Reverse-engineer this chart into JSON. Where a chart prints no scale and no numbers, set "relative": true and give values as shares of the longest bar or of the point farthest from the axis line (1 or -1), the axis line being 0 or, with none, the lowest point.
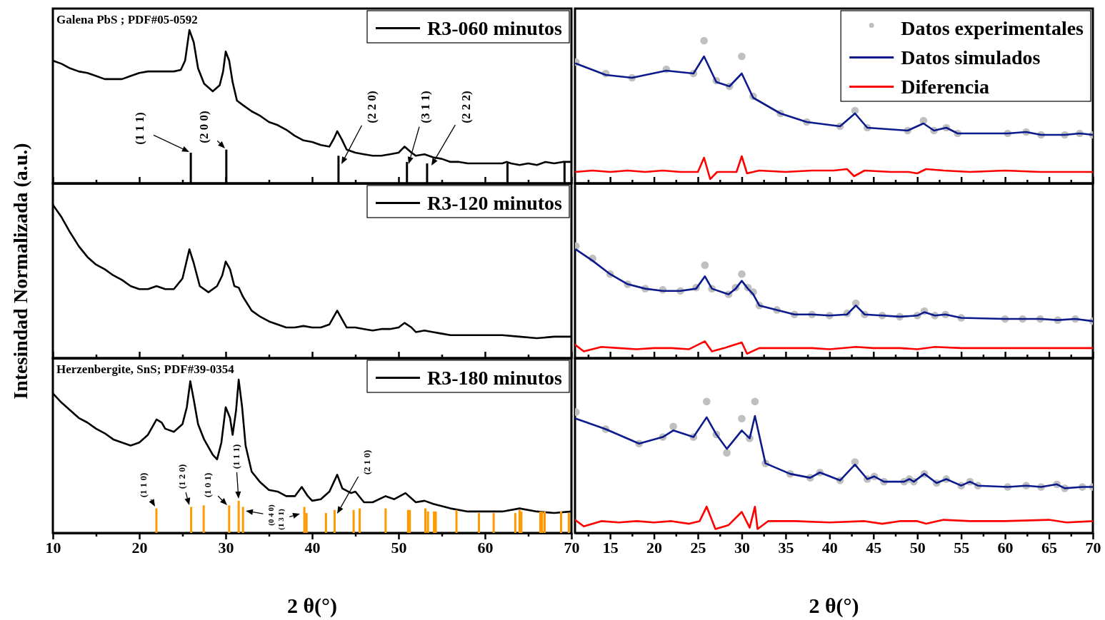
{
  "chart_data": [
    {
      "type": "line",
      "relative": true,
      "xlim": [
        10,
        70
      ],
      "xticks": [
        10,
        {
          "value": 15,
          "label": null
        },
        20,
        {
          "value": 25,
          "label": null
        },
        30,
        {
          "value": 35,
          "label": null
        },
        40,
        {
          "value": 45,
          "label": null
        },
        50,
        {
          "value": 55,
          "label": null
        },
        60,
        {
          "value": 65,
          "label": null
        },
        70
      ],
      "tick_labels": false,
      "legend": "top right",
      "annotations": [
        "Galena PbS ; PDF#05-0592",
        "(1 1 1)",
        "(2 0 0)",
        "(2 2 0)",
        "(3 1 1)",
        "(2 2 2)"
      ],
      "series": [
        {
          "name": "R3-060 minutos",
          "color": "#000000",
          "x": [
            10,
            11,
            12,
            13,
            14,
            15,
            16,
            17,
            18,
            19,
            20,
            21,
            22,
            23,
            24,
            24.8,
            25.3,
            25.8,
            26.3,
            26.8,
            27.5,
            28.5,
            29.3,
            29.7,
            30,
            30.4,
            30.8,
            31.3,
            32,
            33,
            34,
            35,
            36,
            37,
            38,
            39,
            40,
            41,
            42,
            42.5,
            42.9,
            43.4,
            44,
            45,
            46,
            47,
            48,
            49,
            50,
            50.7,
            51.5,
            52,
            53,
            54,
            55,
            56,
            57,
            58,
            59,
            60,
            61,
            62,
            62.5,
            63,
            64,
            65,
            66,
            67,
            68,
            69,
            70
          ],
          "values": [
            0.8,
            0.78,
            0.75,
            0.73,
            0.72,
            0.7,
            0.68,
            0.68,
            0.68,
            0.7,
            0.72,
            0.73,
            0.73,
            0.73,
            0.73,
            0.74,
            0.8,
            1.0,
            0.92,
            0.75,
            0.65,
            0.6,
            0.64,
            0.73,
            0.86,
            0.8,
            0.66,
            0.54,
            0.51,
            0.47,
            0.44,
            0.4,
            0.38,
            0.35,
            0.31,
            0.28,
            0.27,
            0.25,
            0.24,
            0.29,
            0.34,
            0.29,
            0.22,
            0.2,
            0.19,
            0.18,
            0.18,
            0.19,
            0.2,
            0.24,
            0.2,
            0.18,
            0.19,
            0.17,
            0.16,
            0.14,
            0.14,
            0.13,
            0.13,
            0.13,
            0.13,
            0.13,
            0.14,
            0.13,
            0.12,
            0.13,
            0.12,
            0.14,
            0.13,
            0.14,
            0.14
          ]
        },
        {
          "type": "bar",
          "color": "#000000",
          "x": [
            25.96,
            30.07,
            43.05,
            50.97,
            53.3,
            62.6,
            69.2
          ],
          "values": [
            0.2,
            0.22,
            0.18,
            0.14,
            0.13,
            0.13,
            0.14
          ]
        }
      ]
    },
    {
      "type": "line",
      "relative": true,
      "xlim": [
        11,
        70
      ],
      "xticks": [
        {
          "value": 12.5,
          "label": null
        },
        15,
        {
          "value": 17.5,
          "label": null
        },
        20,
        {
          "value": 22.5,
          "label": null
        },
        25,
        {
          "value": 27.5,
          "label": null
        },
        30,
        {
          "value": 32.5,
          "label": null
        },
        35,
        {
          "value": 37.5,
          "label": null
        },
        40,
        {
          "value": 42.5,
          "label": null
        },
        45,
        {
          "value": 47.5,
          "label": null
        },
        50,
        {
          "value": 52.5,
          "label": null
        },
        55,
        {
          "value": 57.5,
          "label": null
        },
        60,
        {
          "value": 62.5,
          "label": null
        },
        65,
        {
          "value": 67.5,
          "label": null
        },
        70
      ],
      "tick_labels": false,
      "legend": "top right",
      "series": [
        {
          "name": "Datos experimentales",
          "type": "scatter",
          "marker": "circle",
          "color": "#c0c0c0",
          "x": [
            11.1,
            14.5,
            17.5,
            21.4,
            24.5,
            25.7,
            27.1,
            28.6,
            30.0,
            31.3,
            34.4,
            37.4,
            41.2,
            42.9,
            44.3,
            48.9,
            50.7,
            51.9,
            53.3,
            54.6,
            60.3,
            62.4,
            64.1,
            66.8,
            68.5,
            70
          ],
          "values": [
            0.85,
            0.77,
            0.74,
            0.8,
            0.77,
            1.0,
            0.72,
            0.68,
            0.89,
            0.61,
            0.49,
            0.43,
            0.4,
            0.51,
            0.39,
            0.37,
            0.44,
            0.37,
            0.39,
            0.35,
            0.35,
            0.36,
            0.34,
            0.34,
            0.35,
            0.34
          ]
        },
        {
          "name": "Datos simulados",
          "color": "#0d1a8c",
          "x": [
            11.1,
            14.5,
            17.5,
            21.4,
            24.5,
            25.7,
            27.1,
            28.6,
            30.0,
            31.3,
            34.4,
            37.4,
            41.2,
            42.9,
            44.3,
            48.9,
            50.7,
            51.9,
            53.3,
            54.6,
            60.3,
            62.4,
            64.1,
            66.8,
            68.5,
            70
          ],
          "values": [
            0.84,
            0.76,
            0.74,
            0.79,
            0.77,
            0.89,
            0.71,
            0.68,
            0.77,
            0.6,
            0.49,
            0.43,
            0.4,
            0.49,
            0.39,
            0.37,
            0.42,
            0.37,
            0.39,
            0.35,
            0.35,
            0.36,
            0.34,
            0.34,
            0.35,
            0.34
          ]
        },
        {
          "name": "Diferencia",
          "color": "#ff0000",
          "x": [
            11,
            13,
            15,
            17,
            19,
            21,
            23,
            25,
            25.7,
            26.4,
            27.2,
            29.4,
            30,
            30.6,
            32,
            35,
            38,
            40.5,
            42,
            42.8,
            44,
            47,
            49,
            50,
            51,
            53,
            56,
            60,
            64,
            68,
            70
          ],
          "values": [
            0.08,
            0.09,
            0.08,
            0.09,
            0.08,
            0.09,
            0.08,
            0.08,
            0.18,
            0.03,
            0.08,
            0.08,
            0.19,
            0.07,
            0.09,
            0.08,
            0.09,
            0.09,
            0.1,
            0.05,
            0.09,
            0.08,
            0.08,
            0.07,
            0.1,
            0.09,
            0.08,
            0.09,
            0.08,
            0.08,
            0.08
          ]
        }
      ]
    },
    {
      "type": "line",
      "relative": true,
      "xlim": [
        10,
        70
      ],
      "xticks": [
        10,
        {
          "value": 15,
          "label": null
        },
        20,
        {
          "value": 25,
          "label": null
        },
        30,
        {
          "value": 35,
          "label": null
        },
        40,
        {
          "value": 45,
          "label": null
        },
        50,
        {
          "value": 55,
          "label": null
        },
        60,
        {
          "value": 65,
          "label": null
        },
        70
      ],
      "tick_labels": false,
      "legend": "top right",
      "ylabel": "Intesindad Normalizada (a.u.)",
      "series": [
        {
          "name": "R3-120 minutos",
          "color": "#000000",
          "x": [
            10,
            11,
            12,
            13,
            14,
            15,
            16,
            17,
            18,
            19,
            20,
            21,
            22,
            23,
            24,
            25,
            25.8,
            26.3,
            27,
            28,
            29,
            29.6,
            30,
            30.5,
            31,
            31.5,
            32,
            33,
            34,
            35,
            36,
            37,
            38,
            39,
            40,
            41,
            42,
            42.9,
            43.5,
            44,
            45,
            46,
            47,
            48,
            49,
            50,
            50.7,
            51.5,
            52,
            53,
            54,
            55,
            56,
            57,
            58,
            59,
            60,
            62,
            64,
            66,
            68,
            70
          ],
          "values": [
            1.0,
            0.92,
            0.82,
            0.73,
            0.66,
            0.61,
            0.58,
            0.54,
            0.51,
            0.47,
            0.45,
            0.45,
            0.47,
            0.45,
            0.45,
            0.52,
            0.71,
            0.62,
            0.47,
            0.43,
            0.47,
            0.54,
            0.63,
            0.58,
            0.47,
            0.46,
            0.4,
            0.31,
            0.27,
            0.24,
            0.22,
            0.2,
            0.2,
            0.21,
            0.2,
            0.2,
            0.22,
            0.31,
            0.25,
            0.2,
            0.2,
            0.19,
            0.18,
            0.19,
            0.19,
            0.2,
            0.23,
            0.2,
            0.17,
            0.18,
            0.17,
            0.16,
            0.15,
            0.15,
            0.15,
            0.15,
            0.15,
            0.15,
            0.14,
            0.13,
            0.14,
            0.14
          ]
        }
      ]
    },
    {
      "type": "line",
      "relative": true,
      "xlim": [
        11,
        70
      ],
      "xticks": [
        {
          "value": 12.5,
          "label": null
        },
        15,
        {
          "value": 17.5,
          "label": null
        },
        20,
        {
          "value": 22.5,
          "label": null
        },
        25,
        {
          "value": 27.5,
          "label": null
        },
        30,
        {
          "value": 32.5,
          "label": null
        },
        35,
        {
          "value": 37.5,
          "label": null
        },
        40,
        {
          "value": 42.5,
          "label": null
        },
        45,
        {
          "value": 47.5,
          "label": null
        },
        50,
        {
          "value": 52.5,
          "label": null
        },
        55,
        {
          "value": 57.5,
          "label": null
        },
        60,
        {
          "value": 62.5,
          "label": null
        },
        65,
        {
          "value": 67.5,
          "label": null
        },
        70
      ],
      "tick_labels": false,
      "series": [
        {
          "type": "scatter",
          "marker": "circle",
          "color": "#c0c0c0",
          "x": [
            11.1,
            13,
            15,
            17,
            19,
            21,
            23,
            24.8,
            25.8,
            26.6,
            28.5,
            29.3,
            30,
            30.7,
            31.3,
            32,
            34,
            36,
            38,
            40,
            42,
            43,
            44,
            46,
            48,
            50,
            50.8,
            52,
            53.2,
            55,
            60,
            62,
            64,
            66,
            68,
            70
          ],
          "values": [
            1.0,
            0.89,
            0.75,
            0.66,
            0.62,
            0.61,
            0.6,
            0.63,
            0.83,
            0.62,
            0.57,
            0.63,
            0.75,
            0.63,
            0.59,
            0.47,
            0.43,
            0.39,
            0.39,
            0.38,
            0.4,
            0.49,
            0.39,
            0.38,
            0.37,
            0.38,
            0.42,
            0.38,
            0.39,
            0.36,
            0.35,
            0.35,
            0.35,
            0.34,
            0.35,
            0.33
          ]
        },
        {
          "color": "#0d1a8c",
          "x": [
            11.1,
            13,
            15,
            17,
            19,
            21,
            23,
            24.8,
            25.8,
            26.6,
            28.5,
            29.3,
            30,
            30.7,
            31.3,
            32,
            34,
            36,
            38,
            40,
            42,
            43,
            44,
            46,
            48,
            50,
            50.8,
            52,
            53.2,
            55,
            60,
            62,
            64,
            66,
            68,
            70
          ],
          "values": [
            0.97,
            0.87,
            0.75,
            0.66,
            0.62,
            0.6,
            0.6,
            0.62,
            0.73,
            0.62,
            0.57,
            0.62,
            0.69,
            0.62,
            0.57,
            0.47,
            0.43,
            0.39,
            0.39,
            0.38,
            0.39,
            0.47,
            0.39,
            0.38,
            0.37,
            0.38,
            0.41,
            0.38,
            0.39,
            0.36,
            0.35,
            0.35,
            0.35,
            0.34,
            0.35,
            0.33
          ]
        },
        {
          "color": "#ff0000",
          "x": [
            11,
            12,
            14,
            16,
            18,
            20,
            22,
            24,
            25.8,
            26.6,
            28,
            30,
            30.6,
            32,
            35,
            38,
            40,
            43,
            45,
            48,
            50,
            52,
            55,
            60,
            65,
            70
          ],
          "values": [
            0.12,
            0.06,
            0.1,
            0.09,
            0.08,
            0.09,
            0.09,
            0.08,
            0.15,
            0.06,
            0.09,
            0.14,
            0.04,
            0.09,
            0.09,
            0.09,
            0.08,
            0.1,
            0.09,
            0.09,
            0.08,
            0.1,
            0.09,
            0.09,
            0.09,
            0.09
          ]
        }
      ]
    },
    {
      "type": "line",
      "relative": true,
      "xlim": [
        10,
        70
      ],
      "xticks": [
        10,
        {
          "value": 15,
          "label": null
        },
        20,
        {
          "value": 25,
          "label": null
        },
        30,
        {
          "value": 35,
          "label": null
        },
        40,
        {
          "value": 45,
          "label": null
        },
        50,
        {
          "value": 55,
          "label": null
        },
        60,
        {
          "value": 65,
          "label": null
        },
        70
      ],
      "tick_labels": "x",
      "legend": "top right",
      "xlabel": "2 θ(°)",
      "annotations": [
        "Herzenbergite, SnS; PDF#39-0354",
        "(1 1 0)",
        "(1 2 0)",
        "(1 0 1)",
        "(1 1 1)",
        "(0 4 0)",
        "(1 3 1)",
        "(2 1 0)"
      ],
      "series": [
        {
          "name": "R3-180 minutos",
          "color": "#000000",
          "x": [
            10,
            11,
            12,
            13,
            14,
            15,
            16,
            17,
            18,
            19,
            20,
            21,
            22,
            22.6,
            23,
            24,
            25,
            25.5,
            25.9,
            26.3,
            26.8,
            27.5,
            28.5,
            29,
            29.5,
            30,
            30.5,
            30.8,
            31.2,
            31.5,
            31.9,
            32.3,
            33,
            34,
            35,
            36,
            37,
            38,
            38.8,
            39.5,
            40,
            41,
            42,
            42.9,
            43.5,
            44.5,
            45,
            46,
            47,
            48.5,
            49.5,
            50.8,
            52,
            53,
            54,
            56,
            58,
            60,
            62,
            64,
            66,
            68,
            70
          ],
          "values": [
            0.91,
            0.85,
            0.8,
            0.75,
            0.72,
            0.68,
            0.65,
            0.61,
            0.59,
            0.57,
            0.59,
            0.64,
            0.74,
            0.72,
            0.68,
            0.66,
            0.71,
            0.82,
            0.99,
            0.87,
            0.71,
            0.61,
            0.51,
            0.48,
            0.59,
            0.82,
            0.75,
            0.64,
            0.8,
            1.0,
            0.82,
            0.57,
            0.4,
            0.33,
            0.28,
            0.27,
            0.24,
            0.24,
            0.3,
            0.24,
            0.21,
            0.22,
            0.27,
            0.38,
            0.29,
            0.26,
            0.27,
            0.2,
            0.2,
            0.24,
            0.22,
            0.26,
            0.2,
            0.21,
            0.19,
            0.16,
            0.14,
            0.14,
            0.14,
            0.16,
            0.14,
            0.13,
            0.14
          ]
        },
        {
          "type": "bar",
          "color": "#ff9900",
          "x": [
            21.98,
            26.0,
            27.45,
            30.4,
            31.5,
            32.0,
            39.1,
            39.35,
            41.6,
            42.6,
            44.8,
            45.5,
            48.5,
            51.1,
            51.3,
            53.1,
            53.4,
            54.1,
            54.3,
            56.7,
            59.3,
            61.0,
            63.5,
            64.0,
            64.2,
            66.4,
            66.6,
            66.9,
            68.8,
            69.7
          ],
          "values": [
            0.16,
            0.17,
            0.18,
            0.18,
            0.21,
            0.17,
            0.17,
            0.13,
            0.13,
            0.15,
            0.15,
            0.16,
            0.16,
            0.15,
            0.15,
            0.16,
            0.14,
            0.14,
            0.14,
            0.15,
            0.13,
            0.13,
            0.13,
            0.15,
            0.14,
            0.14,
            0.14,
            0.14,
            0.14,
            0.13
          ]
        }
      ]
    },
    {
      "type": "line",
      "relative": true,
      "xlim": [
        11,
        70
      ],
      "xticks": [
        {
          "value": 12.5,
          "label": null
        },
        15,
        {
          "value": 17.5,
          "label": null
        },
        20,
        {
          "value": 22.5,
          "label": null
        },
        25,
        {
          "value": 27.5,
          "label": null
        },
        30,
        {
          "value": 32.5,
          "label": null
        },
        35,
        {
          "value": 37.5,
          "label": null
        },
        40,
        {
          "value": 42.5,
          "label": null
        },
        45,
        {
          "value": 47.5,
          "label": null
        },
        50,
        {
          "value": 52.5,
          "label": null
        },
        55,
        {
          "value": 57.5,
          "label": null
        },
        60,
        {
          "value": 62.5,
          "label": null
        },
        65,
        {
          "value": 67.5,
          "label": null
        },
        70
      ],
      "tick_labels": "x",
      "xlabel": "2 θ(°)",
      "series": [
        {
          "type": "scatter",
          "marker": "circle",
          "color": "#c0c0c0",
          "x": [
            11.1,
            14.5,
            18.3,
            21.0,
            22.2,
            24.5,
            26.0,
            27.1,
            28.3,
            30.0,
            30.9,
            31.5,
            32.7,
            35.5,
            37.8,
            38.9,
            41.2,
            42.9,
            44.3,
            45.1,
            46.2,
            48.5,
            49.1,
            49.6,
            50.8,
            52.2,
            53.3,
            55.0,
            56.0,
            56.9,
            60.3,
            62.4,
            64.1,
            65.9,
            66.8,
            68.8,
            70
          ],
          "values": [
            0.92,
            0.79,
            0.68,
            0.73,
            0.81,
            0.73,
            1.0,
            0.75,
            0.61,
            0.87,
            0.72,
            1.0,
            0.53,
            0.45,
            0.42,
            0.46,
            0.4,
            0.54,
            0.41,
            0.43,
            0.39,
            0.39,
            0.41,
            0.39,
            0.45,
            0.38,
            0.41,
            0.36,
            0.39,
            0.36,
            0.35,
            0.36,
            0.35,
            0.37,
            0.34,
            0.35,
            0.35
          ]
        },
        {
          "color": "#0d1a8c",
          "x": [
            11.1,
            14.5,
            18.3,
            21.0,
            22.2,
            24.5,
            26.0,
            27.1,
            28.3,
            30.0,
            30.9,
            31.5,
            32.7,
            35.5,
            37.8,
            38.9,
            41.2,
            42.9,
            44.3,
            45.1,
            46.2,
            48.5,
            49.1,
            49.6,
            50.8,
            52.2,
            53.3,
            55.0,
            56.0,
            56.9,
            60.3,
            62.4,
            64.1,
            65.9,
            66.8,
            68.8,
            70
          ],
          "values": [
            0.87,
            0.79,
            0.68,
            0.73,
            0.78,
            0.73,
            0.88,
            0.75,
            0.64,
            0.78,
            0.72,
            0.89,
            0.53,
            0.45,
            0.42,
            0.46,
            0.4,
            0.52,
            0.41,
            0.43,
            0.39,
            0.39,
            0.41,
            0.39,
            0.45,
            0.38,
            0.41,
            0.36,
            0.39,
            0.36,
            0.35,
            0.36,
            0.35,
            0.37,
            0.34,
            0.35,
            0.35
          ]
        },
        {
          "color": "#ff0000",
          "x": [
            11,
            12,
            14,
            16,
            18,
            20,
            22,
            24,
            25.2,
            26,
            27,
            28.5,
            30,
            30.9,
            31.5,
            31.8,
            33,
            36,
            40,
            44,
            46,
            48,
            50,
            51,
            53,
            56,
            60,
            65,
            67,
            70
          ],
          "values": [
            0.1,
            0.05,
            0.09,
            0.08,
            0.09,
            0.08,
            0.09,
            0.07,
            0.09,
            0.2,
            0.03,
            0.06,
            0.16,
            0.04,
            0.2,
            0.03,
            0.09,
            0.09,
            0.08,
            0.09,
            0.07,
            0.09,
            0.09,
            0.07,
            0.1,
            0.09,
            0.09,
            0.1,
            0.08,
            0.09
          ]
        }
      ]
    }
  ]
}
